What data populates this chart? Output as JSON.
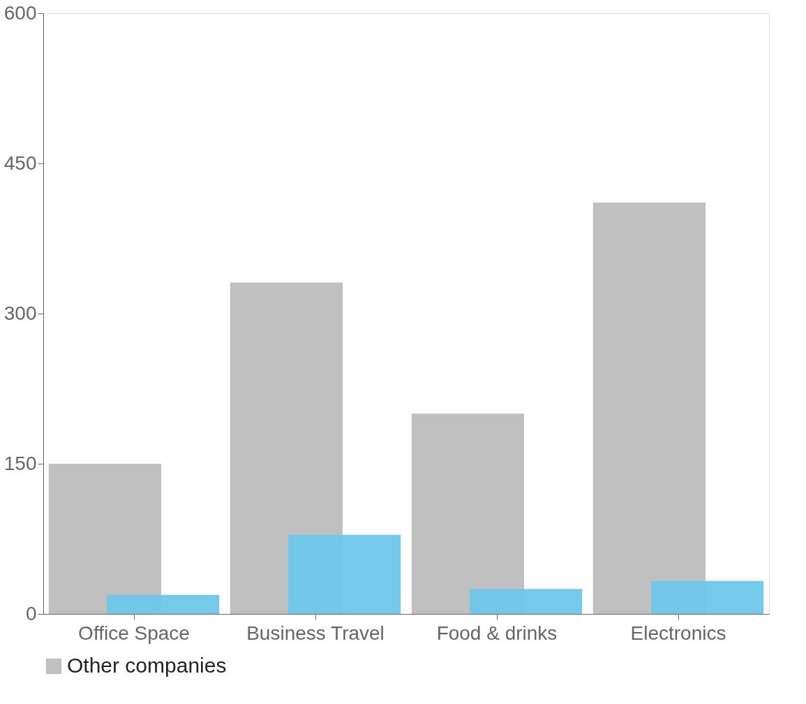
{
  "chart_data": {
    "type": "bar",
    "categories": [
      "Office Space",
      "Business Travel",
      "Food & drinks",
      "Electronics"
    ],
    "series": [
      {
        "name": "Other companies",
        "color": "#bdbdbd",
        "values": [
          150,
          331,
          200,
          411
        ]
      },
      {
        "color": "#6ec6ea",
        "values": [
          19,
          79,
          25,
          33
        ]
      }
    ],
    "ylim": [
      0,
      600
    ],
    "yticks": [
      0,
      150,
      300,
      450,
      600
    ],
    "grid": false,
    "legend": "bottom"
  }
}
